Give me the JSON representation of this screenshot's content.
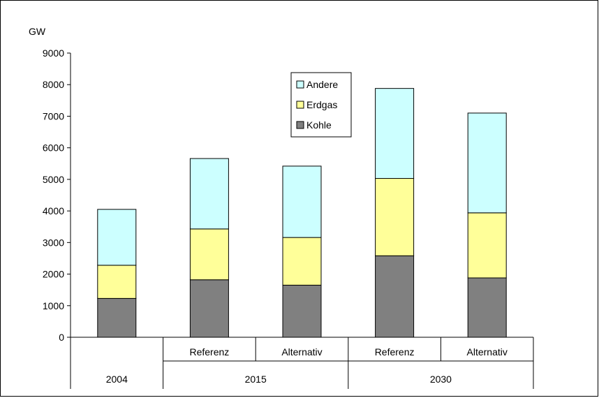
{
  "chart_data": {
    "type": "bar",
    "stacked": true,
    "ylabel": "GW",
    "ylim": [
      0,
      9000
    ],
    "yticks": [
      0,
      1000,
      2000,
      3000,
      4000,
      5000,
      6000,
      7000,
      8000,
      9000
    ],
    "categories": [
      "2004",
      "2015 Referenz",
      "2015 Alternativ",
      "2030 Referenz",
      "2030 Alternativ"
    ],
    "category_labels": [
      "",
      "Referenz",
      "Alternativ",
      "Referenz",
      "Alternativ"
    ],
    "category_groups": [
      {
        "label": "2004",
        "span": 1
      },
      {
        "label": "2015",
        "span": 2
      },
      {
        "label": "2030",
        "span": 2
      }
    ],
    "series": [
      {
        "name": "Kohle",
        "color": "#808080",
        "values": [
          1230,
          1820,
          1650,
          2580,
          1880
        ]
      },
      {
        "name": "Erdgas",
        "color": "#ffff99",
        "values": [
          1050,
          1610,
          1510,
          2450,
          2060
        ]
      },
      {
        "name": "Andere",
        "color": "#ccffff",
        "values": [
          1770,
          2230,
          2260,
          2850,
          3160
        ]
      }
    ],
    "legend": {
      "placement": "top-center",
      "order": [
        "Andere",
        "Erdgas",
        "Kohle"
      ]
    },
    "grid": false
  }
}
